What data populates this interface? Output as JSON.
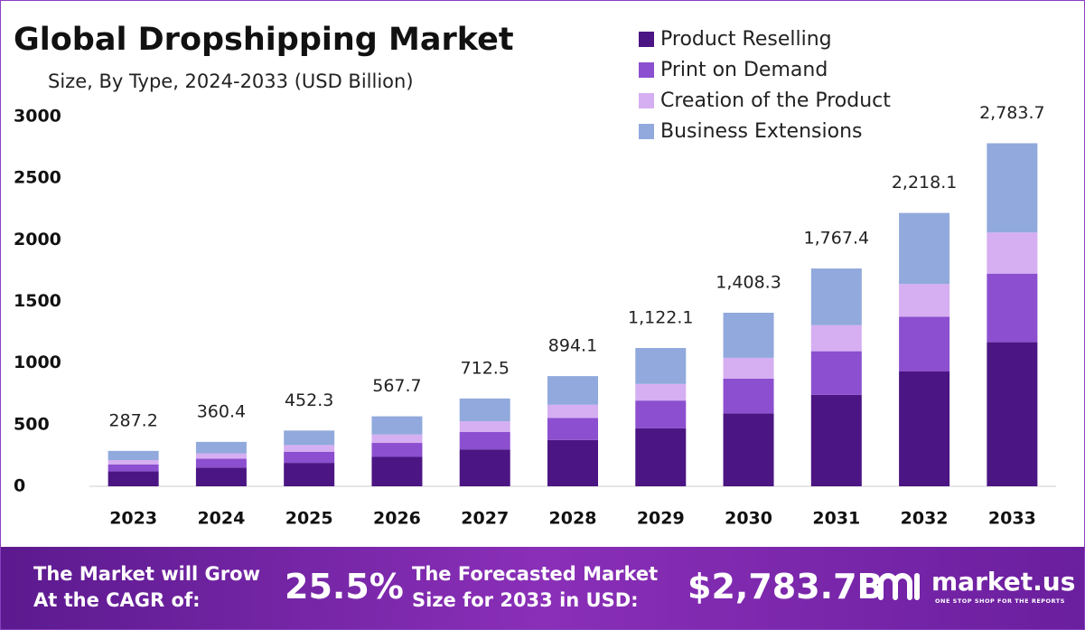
{
  "chart_data": {
    "type": "stacked_bar",
    "title": "Global Dropshipping Market",
    "subtitle": "Size, By Type, 2024-2033 (USD Billion)",
    "categories": [
      "2023",
      "2024",
      "2025",
      "2026",
      "2027",
      "2028",
      "2029",
      "2030",
      "2031",
      "2032",
      "2033"
    ],
    "series": [
      {
        "name": "Product Reselling",
        "color": "#4b1583",
        "values": [
          120.6,
          151.4,
          190.0,
          238.4,
          299.3,
          375.5,
          471.3,
          591.5,
          742.3,
          931.6,
          1169.2
        ]
      },
      {
        "name": "Print on Demand",
        "color": "#8b4fcf",
        "values": [
          57.4,
          72.1,
          90.5,
          113.5,
          142.5,
          178.8,
          224.4,
          281.7,
          353.5,
          443.6,
          556.7
        ]
      },
      {
        "name": "Creation of the Product",
        "color": "#d6aef2",
        "values": [
          34.5,
          43.2,
          54.3,
          68.1,
          85.5,
          107.3,
          134.7,
          169.0,
          212.1,
          266.2,
          334.0
        ]
      },
      {
        "name": "Business Extensions",
        "color": "#91a9dc",
        "values": [
          74.7,
          93.7,
          117.5,
          147.7,
          185.2,
          232.5,
          291.7,
          366.1,
          459.5,
          576.7,
          723.8
        ]
      }
    ],
    "totals": [
      287.2,
      360.4,
      452.3,
      567.7,
      712.5,
      894.1,
      1122.1,
      1408.3,
      1767.4,
      2218.1,
      2783.7
    ],
    "total_labels": [
      "287.2",
      "360.4",
      "452.3",
      "567.7",
      "712.5",
      "894.1",
      "1,122.1",
      "1,408.3",
      "1,767.4",
      "2,218.1",
      "2,783.7"
    ],
    "ylim": [
      0,
      3000
    ],
    "yticks": [
      0,
      500,
      1000,
      1500,
      2000,
      2500,
      3000
    ],
    "grid": false,
    "legend": "top-right"
  },
  "footer": {
    "cagr_text": [
      "The Market will Grow",
      "At the CAGR of:"
    ],
    "cagr": "25.5%",
    "forecast_text": [
      "The Forecasted Market",
      "Size for 2033 in USD:"
    ],
    "forecast": "$2,783.7B",
    "brand": "market.us",
    "tagline": "ONE STOP SHOP FOR THE REPORTS"
  }
}
